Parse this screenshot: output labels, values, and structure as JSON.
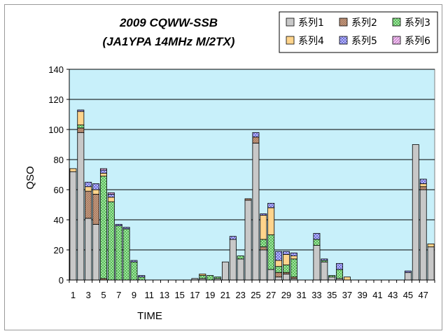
{
  "chart_data": {
    "type": "bar",
    "stacked": true,
    "title": "2009 CQWW-SSB",
    "subtitle": "(JA1YPA  14MHz  M/2TX)",
    "xlabel": "TIME",
    "ylabel": "QSO",
    "ylim": [
      0,
      140
    ],
    "yticks": [
      0,
      20,
      40,
      60,
      80,
      100,
      120,
      140
    ],
    "grid": true,
    "legend_position": "top-right",
    "categories": [
      "1",
      "2",
      "3",
      "4",
      "5",
      "6",
      "7",
      "8",
      "9",
      "10",
      "11",
      "12",
      "13",
      "14",
      "15",
      "16",
      "17",
      "18",
      "19",
      "20",
      "21",
      "22",
      "23",
      "24",
      "25",
      "26",
      "27",
      "28",
      "29",
      "30",
      "31",
      "32",
      "33",
      "34",
      "35",
      "36",
      "37",
      "38",
      "39",
      "40",
      "41",
      "42",
      "43",
      "44",
      "45",
      "46",
      "47",
      "48"
    ],
    "xtick_labels": [
      "1",
      "3",
      "5",
      "7",
      "9",
      "11",
      "13",
      "15",
      "17",
      "19",
      "21",
      "23",
      "25",
      "27",
      "29",
      "31",
      "33",
      "35",
      "37",
      "39",
      "41",
      "43",
      "45",
      "47"
    ],
    "series": [
      {
        "name": "系列1",
        "color": "#c8c8c8",
        "values": [
          72,
          98,
          41,
          37,
          0,
          0,
          0,
          0,
          0,
          0,
          0,
          0,
          0,
          0,
          0,
          0,
          1,
          1,
          0,
          1,
          12,
          27,
          14,
          53,
          91,
          20,
          7,
          2,
          4,
          1,
          0,
          0,
          23,
          12,
          2,
          1,
          0,
          0,
          0,
          0,
          0,
          0,
          0,
          0,
          5,
          90,
          60,
          22
        ]
      },
      {
        "name": "系列2",
        "color": "#c49a80",
        "values": [
          0,
          3,
          18,
          20,
          1,
          0,
          0,
          0,
          0,
          0,
          0,
          0,
          0,
          0,
          0,
          0,
          0,
          0,
          0,
          0,
          0,
          0,
          0,
          1,
          4,
          2,
          0,
          3,
          1,
          1,
          0,
          0,
          0,
          0,
          0,
          0,
          0,
          0,
          0,
          0,
          0,
          0,
          0,
          0,
          0,
          0,
          2,
          0
        ]
      },
      {
        "name": "系列3",
        "color": "#9fe6a0",
        "values": [
          0,
          2,
          0,
          0,
          68,
          52,
          36,
          34,
          12,
          2,
          0,
          0,
          0,
          0,
          0,
          0,
          0,
          2,
          3,
          1,
          0,
          0,
          2,
          0,
          0,
          5,
          23,
          4,
          5,
          12,
          0,
          0,
          4,
          1,
          1,
          6,
          0,
          0,
          0,
          0,
          0,
          0,
          0,
          0,
          0,
          0,
          0,
          0
        ]
      },
      {
        "name": "系列4",
        "color": "#ffd48c",
        "values": [
          2,
          9,
          3,
          3,
          2,
          3,
          0,
          0,
          0,
          0,
          0,
          0,
          0,
          0,
          0,
          0,
          0,
          1,
          0,
          0,
          0,
          0,
          0,
          0,
          0,
          16,
          18,
          4,
          7,
          2,
          0,
          0,
          0,
          0,
          0,
          0,
          2,
          0,
          0,
          0,
          0,
          0,
          0,
          0,
          0,
          0,
          2,
          2
        ]
      },
      {
        "name": "系列5",
        "color": "#b4b4ff",
        "values": [
          0,
          1,
          3,
          4,
          2,
          2,
          1,
          1,
          1,
          1,
          0,
          0,
          0,
          0,
          0,
          0,
          0,
          0,
          0,
          0,
          0,
          2,
          0,
          0,
          3,
          1,
          3,
          6,
          2,
          2,
          0,
          0,
          4,
          1,
          0,
          4,
          0,
          0,
          0,
          0,
          0,
          0,
          0,
          0,
          1,
          0,
          3,
          0
        ]
      },
      {
        "name": "系列6",
        "color": "#e8b0e8",
        "values": [
          0,
          0,
          0,
          0,
          1,
          1,
          0,
          0,
          0,
          0,
          0,
          0,
          0,
          0,
          0,
          0,
          0,
          0,
          0,
          0,
          0,
          0,
          0,
          0,
          0,
          0,
          0,
          0,
          0,
          0,
          0,
          0,
          0,
          0,
          0,
          0,
          0,
          0,
          0,
          0,
          0,
          0,
          0,
          0,
          0,
          0,
          0,
          0
        ]
      }
    ]
  }
}
